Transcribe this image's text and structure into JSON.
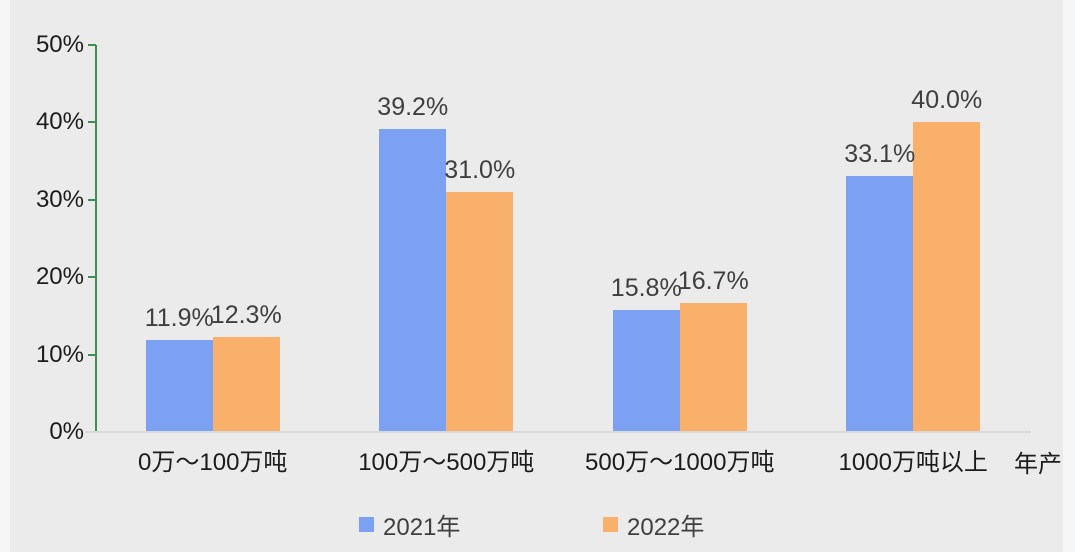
{
  "page": {
    "background_color": "#EBEBEB",
    "margin_color": "#F5F6F8"
  },
  "chart_data": {
    "type": "bar",
    "title": "",
    "categories": [
      "0万～100万吨",
      "100万～500万吨",
      "500万～1000万吨",
      "1000万吨以上"
    ],
    "series": [
      {
        "name": "2021年",
        "color": "#7CA0F2",
        "values": [
          11.9,
          39.2,
          15.8,
          33.1
        ],
        "labels": [
          "11.9%",
          "39.2%",
          "15.8%",
          "33.1%"
        ]
      },
      {
        "name": "2022年",
        "color": "#F8B06B",
        "values": [
          12.3,
          31.0,
          16.7,
          40.0
        ],
        "labels": [
          "12.3%",
          "31.0%",
          "16.7%",
          "40.0%"
        ]
      }
    ],
    "y_axis": {
      "ticks_top_to_bottom": [
        "50%",
        "40%",
        "30%",
        "20%",
        "10%",
        "0%"
      ],
      "min": 0,
      "max": 50,
      "axis_color": "#3F8E51",
      "label_color": "#1C1C1C"
    },
    "x_axis": {
      "title": "年产",
      "line_color": "#D9D9D9",
      "label_color": "#1C1C1C"
    },
    "legend": [
      {
        "label": "2021年",
        "color": "#7CA0F2"
      },
      {
        "label": "2022年",
        "color": "#F8B06B"
      }
    ],
    "legend_position": "bottom",
    "grid": false,
    "data_label_color": "#3F3F3F"
  }
}
